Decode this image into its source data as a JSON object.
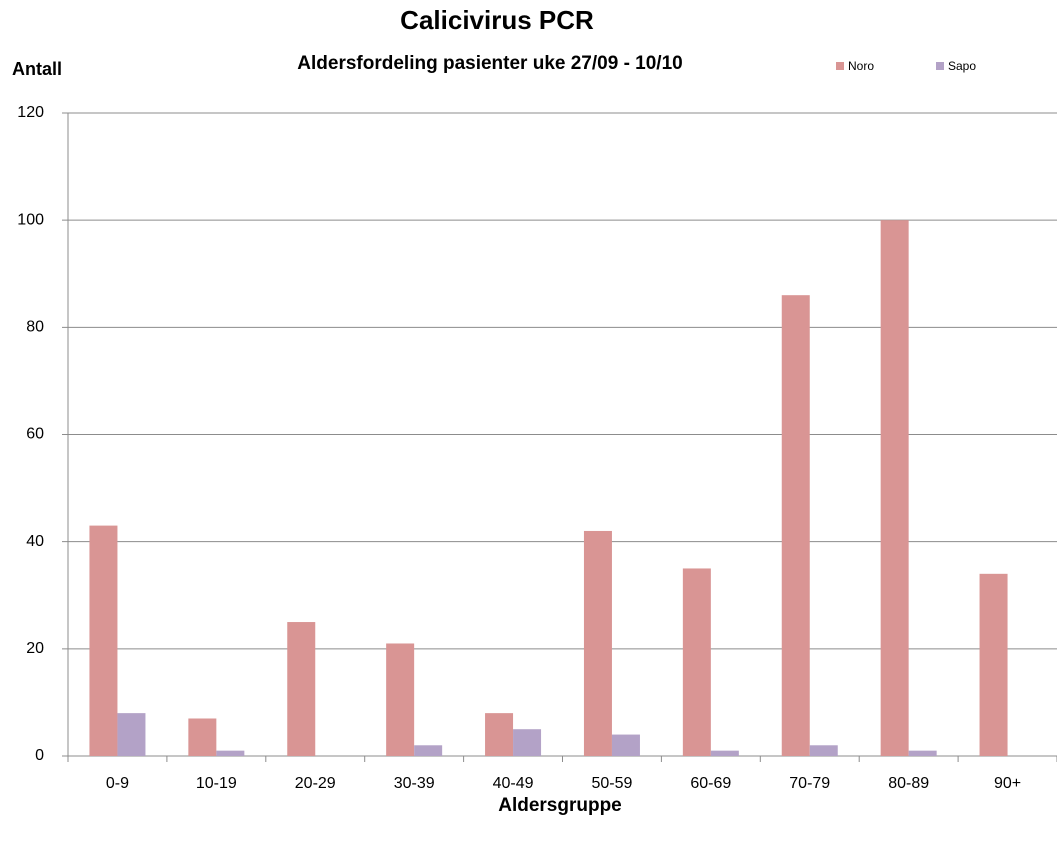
{
  "chart_data": {
    "type": "bar",
    "title": "Calicivirus PCR",
    "subtitle": "Aldersfordeling pasienter uke 27/09 - 10/10",
    "y_label": "Antall",
    "x_label": "Aldersgruppe",
    "categories": [
      "0-9",
      "10-19",
      "20-29",
      "30-39",
      "40-49",
      "50-59",
      "60-69",
      "70-79",
      "80-89",
      "90+"
    ],
    "series": [
      {
        "name": "Noro",
        "color": "#d99594",
        "values": [
          43,
          7,
          25,
          21,
          8,
          42,
          35,
          86,
          100,
          34
        ]
      },
      {
        "name": "Sapo",
        "color": "#b3a2c7",
        "values": [
          8,
          1,
          0,
          2,
          5,
          4,
          1,
          2,
          1,
          0
        ]
      }
    ],
    "ylim": [
      0,
      120
    ],
    "yticks": [
      0,
      20,
      40,
      60,
      80,
      100,
      120
    ],
    "grid": true,
    "legend": "top-right"
  }
}
